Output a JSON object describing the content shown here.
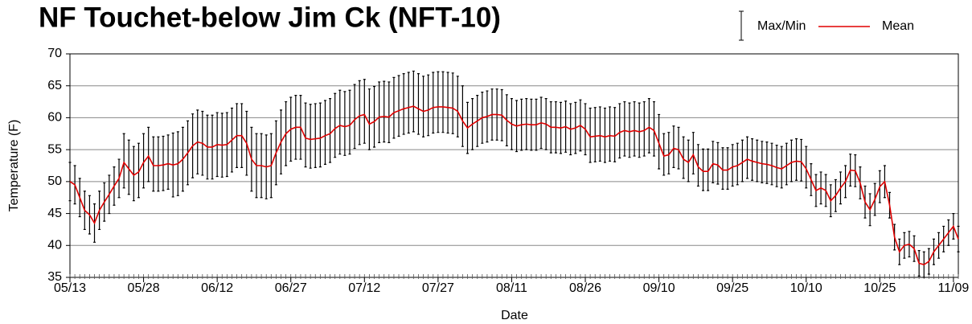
{
  "chart_data": {
    "type": "line",
    "title": "NF Touchet-below Jim Ck (NFT-10)",
    "x_label": "Date",
    "y_label": "Temperature (F)",
    "categories": [
      "05/13",
      null,
      null,
      null,
      null,
      null,
      null,
      null,
      null,
      null,
      null,
      null,
      null,
      null,
      null,
      "05/28",
      null,
      null,
      null,
      null,
      null,
      null,
      null,
      null,
      null,
      null,
      null,
      null,
      null,
      null,
      "06/12",
      null,
      null,
      null,
      null,
      null,
      null,
      null,
      null,
      null,
      null,
      null,
      null,
      null,
      null,
      "06/27",
      null,
      null,
      null,
      null,
      null,
      null,
      null,
      null,
      null,
      null,
      null,
      null,
      null,
      null,
      "07/12",
      null,
      null,
      null,
      null,
      null,
      null,
      null,
      null,
      null,
      null,
      null,
      null,
      null,
      null,
      "07/27",
      null,
      null,
      null,
      null,
      null,
      null,
      null,
      null,
      null,
      null,
      null,
      null,
      null,
      null,
      "08/11",
      null,
      null,
      null,
      null,
      null,
      null,
      null,
      null,
      null,
      null,
      null,
      null,
      null,
      null,
      "08/26",
      null,
      null,
      null,
      null,
      null,
      null,
      null,
      null,
      null,
      null,
      null,
      null,
      null,
      null,
      "09/10",
      null,
      null,
      null,
      null,
      null,
      null,
      null,
      null,
      null,
      null,
      null,
      null,
      null,
      null,
      "09/25",
      null,
      null,
      null,
      null,
      null,
      null,
      null,
      null,
      null,
      null,
      null,
      null,
      null,
      null,
      "10/10",
      null,
      null,
      null,
      null,
      null,
      null,
      null,
      null,
      null,
      null,
      null,
      null,
      null,
      null,
      "10/25",
      null,
      null,
      null,
      null,
      null,
      null,
      null,
      null,
      null,
      null,
      null,
      null,
      null,
      null,
      "11/09",
      null
    ],
    "series": [
      {
        "name": "Max/Min",
        "color": "#000000",
        "max": [
          53,
          52.5,
          50.5,
          48.5,
          47.8,
          46.5,
          48.5,
          49.8,
          51,
          52.3,
          53.5,
          57.5,
          56.5,
          55.5,
          56,
          57.5,
          58.5,
          57,
          57,
          57.1,
          57.3,
          57.6,
          57.8,
          58.5,
          59.5,
          60.6,
          61.2,
          61,
          60.4,
          60.4,
          60.8,
          60.7,
          60.8,
          61.5,
          62.2,
          62.2,
          61,
          58.5,
          57.5,
          57.5,
          57.3,
          57.5,
          59.5,
          61.2,
          62.5,
          63.2,
          63.5,
          63.5,
          62.3,
          62.1,
          62.2,
          62.3,
          62.7,
          63,
          63.8,
          64.3,
          64.1,
          64.3,
          65.2,
          65.8,
          66,
          64.5,
          64.9,
          65.6,
          65.7,
          65.6,
          66.3,
          66.6,
          66.9,
          67.1,
          67.3,
          66.9,
          66.5,
          66.7,
          67.1,
          67.2,
          67.2,
          67.1,
          67,
          66.5,
          65,
          62.4,
          63,
          63.5,
          64,
          64.2,
          64.5,
          64.5,
          64.4,
          63.6,
          63,
          62.7,
          62.9,
          63,
          62.9,
          62.9,
          63.2,
          63,
          62.5,
          62.5,
          62.4,
          62.6,
          62.2,
          62.4,
          62.8,
          62.2,
          61.5,
          61.6,
          61.7,
          61.5,
          61.7,
          61.6,
          62.2,
          62.5,
          62.3,
          62.5,
          62.3,
          62.5,
          63,
          62.5,
          60.5,
          57.5,
          57.7,
          58.7,
          58.5,
          57,
          56.5,
          57.7,
          55.8,
          55.1,
          55.1,
          56.3,
          56.1,
          55.3,
          55.3,
          55.8,
          56,
          56.5,
          57,
          56.7,
          56.5,
          56.3,
          56.2,
          56,
          55.7,
          55.5,
          56,
          56.5,
          56.7,
          56.6,
          55.5,
          52.8,
          51.1,
          51.5,
          51.1,
          49.5,
          50.3,
          51.5,
          52.5,
          54.3,
          54.2,
          52.3,
          49.3,
          48.1,
          49.7,
          51.7,
          52.5,
          48.3,
          43.3,
          41,
          42,
          42.2,
          41.5,
          39.2,
          39,
          39.5,
          41,
          42,
          43,
          44,
          45,
          43
        ],
        "min": [
          47,
          46.5,
          44.5,
          42.5,
          41.8,
          40.5,
          42.5,
          43.8,
          45,
          46.3,
          47.5,
          49,
          48,
          47,
          47.5,
          49,
          50,
          48.5,
          48.5,
          48.6,
          48.8,
          47.6,
          47.8,
          48.5,
          49.5,
          50.6,
          51.2,
          51,
          50.4,
          50.4,
          50.8,
          50.7,
          50.8,
          51.5,
          52.2,
          52.2,
          51,
          48.5,
          47.5,
          47.5,
          47.3,
          47.5,
          49.5,
          51.2,
          52.5,
          53.2,
          53.5,
          53.5,
          52.3,
          52.1,
          52.2,
          52.3,
          52.7,
          53,
          53.8,
          54.3,
          54.1,
          54.3,
          55.2,
          55.8,
          56,
          55,
          55.4,
          56.1,
          56.2,
          56.1,
          56.8,
          57.1,
          57.4,
          57.6,
          57.8,
          57.4,
          57,
          57.2,
          57.6,
          57.7,
          57.7,
          57.6,
          57.5,
          57,
          55.5,
          54.4,
          55,
          55.5,
          56,
          56.2,
          56.5,
          56.5,
          56.4,
          55.6,
          55,
          54.7,
          54.9,
          55,
          54.9,
          54.9,
          55.2,
          55,
          54.5,
          54.5,
          54.4,
          54.6,
          54.2,
          54.4,
          54.8,
          54.2,
          53,
          53.1,
          53.2,
          53,
          53.2,
          53.1,
          53.7,
          54,
          53.8,
          54,
          53.8,
          54,
          54.5,
          54,
          52,
          51,
          51.2,
          52.2,
          52,
          50.5,
          50,
          51.2,
          49.3,
          48.6,
          48.6,
          49.8,
          49.6,
          48.8,
          48.8,
          49.3,
          49.5,
          50,
          50.5,
          50.2,
          50,
          49.8,
          49.7,
          49.5,
          49.2,
          49,
          49.5,
          50,
          50.2,
          50.1,
          49,
          47.8,
          46.1,
          46.5,
          46.1,
          44.5,
          45.3,
          46.5,
          47.5,
          49.3,
          49.2,
          47.3,
          44.3,
          43.1,
          44.7,
          46.7,
          47.5,
          44.3,
          39.3,
          37,
          38,
          38.2,
          37.5,
          35.2,
          35,
          35.5,
          37,
          38,
          39,
          40,
          41,
          39
        ]
      },
      {
        "name": "Mean",
        "color": "#e00000",
        "values": [
          50,
          49.5,
          47.5,
          45.5,
          44.8,
          43.5,
          45.5,
          46.8,
          48,
          49.3,
          50.5,
          53,
          52,
          51,
          51.5,
          53,
          54,
          52.5,
          52.5,
          52.6,
          52.8,
          52.6,
          52.8,
          53.5,
          54.5,
          55.6,
          56.2,
          56,
          55.4,
          55.4,
          55.8,
          55.7,
          55.8,
          56.5,
          57.2,
          57.2,
          56,
          53.5,
          52.5,
          52.5,
          52.3,
          52.5,
          54.5,
          56.2,
          57.5,
          58.2,
          58.5,
          58.5,
          56.8,
          56.6,
          56.7,
          56.8,
          57.2,
          57.5,
          58.3,
          58.8,
          58.6,
          58.8,
          59.7,
          60.3,
          60.5,
          59,
          59.4,
          60.1,
          60.2,
          60.1,
          60.8,
          61.1,
          61.4,
          61.6,
          61.8,
          61.4,
          61,
          61.2,
          61.6,
          61.7,
          61.7,
          61.6,
          61.5,
          61,
          59.5,
          58.4,
          59,
          59.5,
          60,
          60.2,
          60.5,
          60.5,
          60.4,
          59.6,
          59,
          58.7,
          58.9,
          59,
          58.9,
          58.9,
          59.2,
          59,
          58.5,
          58.5,
          58.4,
          58.6,
          58.2,
          58.4,
          58.8,
          58.2,
          57,
          57.1,
          57.2,
          57,
          57.2,
          57.1,
          57.7,
          58,
          57.8,
          58,
          57.8,
          58,
          58.5,
          58,
          56,
          54,
          54.2,
          55.2,
          55,
          53.5,
          53,
          54.2,
          52.3,
          51.6,
          51.6,
          52.8,
          52.6,
          51.8,
          51.8,
          52.3,
          52.5,
          53,
          53.5,
          53.2,
          53,
          52.8,
          52.7,
          52.5,
          52.2,
          52,
          52.5,
          53,
          53.2,
          53.1,
          52,
          50.3,
          48.6,
          49,
          48.6,
          47,
          47.8,
          49,
          50,
          51.8,
          51.7,
          49.8,
          46.8,
          45.6,
          47.2,
          49.2,
          50,
          46.3,
          41.3,
          39,
          40,
          40.2,
          39.5,
          37.2,
          37,
          37.5,
          39,
          40,
          41,
          42,
          43,
          41
        ]
      }
    ],
    "ylim": [
      35,
      70
    ],
    "yticks": [
      35,
      40,
      45,
      50,
      55,
      60,
      65,
      70
    ],
    "grid": true
  }
}
